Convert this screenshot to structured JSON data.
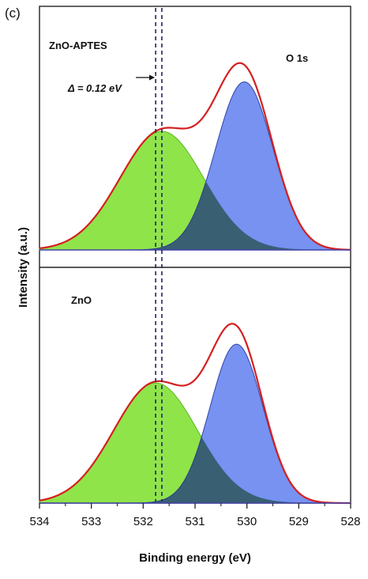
{
  "panel_label": "(c)",
  "chart_data": {
    "type": "area",
    "xlabel": "Binding energy (eV)",
    "ylabel": "Intensity (a.u.)",
    "xlim": [
      534,
      528
    ],
    "x_reversed": true,
    "x_ticks": [
      "534",
      "533",
      "532",
      "531",
      "530",
      "529",
      "528"
    ],
    "dashed_lines_x": [
      531.76,
      531.64
    ],
    "colors": {
      "component_1": "#7fe030",
      "component_2": "#5577ee",
      "envelope": "#d42020",
      "baseline": "#4444aa",
      "dashed": "#222266"
    },
    "panels": [
      {
        "sample_label": "ZnO-APTES",
        "peak_label": "O 1s",
        "annotation": "Δ = 0.12 eV",
        "components": [
          {
            "center": 531.64,
            "fwhm": 1.9,
            "height": 0.6
          },
          {
            "center": 530.05,
            "fwhm": 1.3,
            "height": 0.85
          }
        ],
        "envelope_max": 0.95
      },
      {
        "sample_label": "ZnO",
        "components": [
          {
            "center": 531.76,
            "fwhm": 1.9,
            "height": 0.62
          },
          {
            "center": 530.2,
            "fwhm": 1.2,
            "height": 0.82
          }
        ],
        "envelope_max": 0.92
      }
    ]
  }
}
